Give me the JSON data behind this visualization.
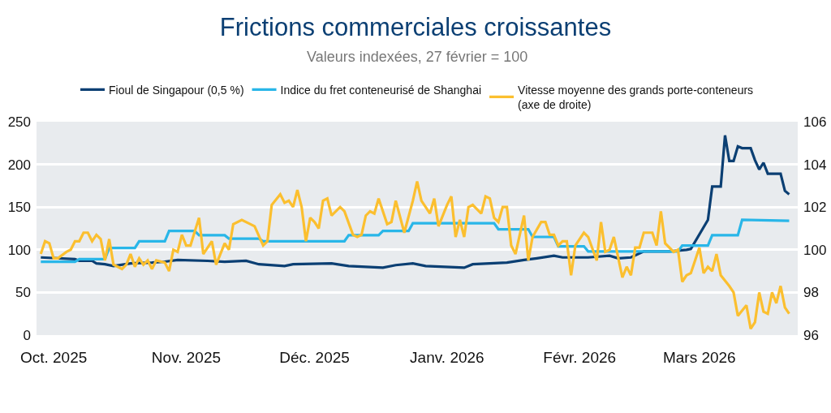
{
  "chart_data": {
    "type": "line",
    "title": "Frictions commerciales croissantes",
    "subtitle": "Valeurs indexées, 27 février = 100",
    "xlim": [
      "2025-09-27",
      "2026-03-24"
    ],
    "xticks": [
      {
        "value": "2025-10-01",
        "label": "Oct. 2025"
      },
      {
        "value": "2025-11-01",
        "label": "Nov. 2025"
      },
      {
        "value": "2025-12-01",
        "label": "Déc. 2025"
      },
      {
        "value": "2026-01-01",
        "label": "Janv. 2026"
      },
      {
        "value": "2026-02-01",
        "label": "Févr. 2026"
      },
      {
        "value": "2026-03-01",
        "label": "Mars 2026"
      }
    ],
    "ylim": [
      0,
      250
    ],
    "yticks": [
      0,
      50,
      100,
      150,
      200,
      250
    ],
    "y2lim": [
      96,
      106
    ],
    "y2ticks": [
      96,
      98,
      100,
      102,
      104,
      106
    ],
    "grid": "y",
    "legend": "top",
    "marker": "none",
    "line_style": "solid",
    "series": [
      {
        "name": "Fioul de Singapour (0,5 %)",
        "color": "#0b3f73",
        "x": [
          "2025-09-28",
          "2025-10-06",
          "2025-10-07",
          "2025-10-10",
          "2025-10-11",
          "2025-10-13",
          "2025-10-15",
          "2025-10-19",
          "2025-10-24",
          "2025-10-27",
          "2025-10-30",
          "2025-11-06",
          "2025-11-10",
          "2025-11-15",
          "2025-11-18",
          "2025-11-24",
          "2025-11-26",
          "2025-12-05",
          "2025-12-09",
          "2025-12-17",
          "2025-12-20",
          "2025-12-24",
          "2025-12-27",
          "2026-01-05",
          "2026-01-07",
          "2026-01-15",
          "2026-01-19",
          "2026-01-22",
          "2026-01-26",
          "2026-01-28",
          "2026-02-03",
          "2026-02-08",
          "2026-02-10",
          "2026-02-13",
          "2026-02-16",
          "2026-02-22",
          "2026-02-26",
          "2026-02-27",
          "2026-03-03",
          "2026-03-04",
          "2026-03-06",
          "2026-03-07",
          "2026-03-08",
          "2026-03-09",
          "2026-03-10",
          "2026-03-11",
          "2026-03-13",
          "2026-03-14",
          "2026-03-15",
          "2026-03-16",
          "2026-03-17",
          "2026-03-20",
          "2026-03-21",
          "2026-03-22"
        ],
        "values": [
          91,
          89,
          87,
          87,
          84,
          83,
          81,
          84,
          85,
          86,
          88,
          87,
          86,
          87,
          83,
          81,
          83,
          84,
          81,
          79,
          82,
          84,
          81,
          79,
          83,
          85,
          88,
          90,
          93,
          91,
          91,
          93,
          90,
          91,
          98,
          98,
          100,
          101,
          135,
          174,
          174,
          234,
          204,
          204,
          221,
          219,
          219,
          205,
          194,
          202,
          189,
          189,
          169,
          165
        ]
      },
      {
        "name": "Indice du fret conteneurisé de Shanghai",
        "color": "#29b6e8",
        "x": [
          "2025-09-28",
          "2025-10-06",
          "2025-10-07",
          "2025-10-13",
          "2025-10-14",
          "2025-10-20",
          "2025-10-21",
          "2025-10-27",
          "2025-10-28",
          "2025-11-03",
          "2025-11-04",
          "2025-11-10",
          "2025-11-11",
          "2025-11-18",
          "2025-11-19",
          "2025-12-08",
          "2025-12-09",
          "2025-12-16",
          "2025-12-17",
          "2025-12-23",
          "2025-12-24",
          "2026-01-12",
          "2026-01-13",
          "2026-01-20",
          "2026-01-21",
          "2026-01-26",
          "2026-01-27",
          "2026-02-02",
          "2026-02-03",
          "2026-02-24",
          "2026-02-25",
          "2026-03-03",
          "2026-03-04",
          "2026-03-10",
          "2026-03-11",
          "2026-03-22"
        ],
        "values": [
          86,
          86,
          89,
          89,
          102,
          102,
          110,
          110,
          122,
          122,
          117,
          117,
          113,
          113,
          110,
          110,
          117,
          117,
          122,
          122,
          131,
          131,
          124,
          124,
          115,
          115,
          104,
          104,
          98,
          98,
          105,
          105,
          117,
          117,
          135,
          134
        ]
      },
      {
        "name": "Vitesse moyenne des grands porte-conteneurs (axe de droite)",
        "color": "#fbbf2f",
        "axis": "y2",
        "x": [
          "2025-09-28",
          "2025-09-29",
          "2025-09-30",
          "2025-10-01",
          "2025-10-02",
          "2025-10-04",
          "2025-10-05",
          "2025-10-06",
          "2025-10-07",
          "2025-10-08",
          "2025-10-09",
          "2025-10-10",
          "2025-10-11",
          "2025-10-12",
          "2025-10-13",
          "2025-10-14",
          "2025-10-15",
          "2025-10-17",
          "2025-10-18",
          "2025-10-19",
          "2025-10-20",
          "2025-10-21",
          "2025-10-22",
          "2025-10-23",
          "2025-10-24",
          "2025-10-25",
          "2025-10-27",
          "2025-10-28",
          "2025-10-29",
          "2025-10-30",
          "2025-10-31",
          "2025-11-01",
          "2025-11-02",
          "2025-11-04",
          "2025-11-05",
          "2025-11-07",
          "2025-11-08",
          "2025-11-10",
          "2025-11-11",
          "2025-11-12",
          "2025-11-14",
          "2025-11-15",
          "2025-11-17",
          "2025-11-19",
          "2025-11-20",
          "2025-11-21",
          "2025-11-23",
          "2025-11-24",
          "2025-11-25",
          "2025-11-26",
          "2025-11-27",
          "2025-11-28",
          "2025-11-29",
          "2025-11-30",
          "2025-12-01",
          "2025-12-02",
          "2025-12-03",
          "2025-12-04",
          "2025-12-05",
          "2025-12-07",
          "2025-12-08",
          "2025-12-10",
          "2025-12-11",
          "2025-12-12",
          "2025-12-13",
          "2025-12-14",
          "2025-12-15",
          "2025-12-16",
          "2025-12-18",
          "2025-12-19",
          "2025-12-20",
          "2025-12-22",
          "2025-12-24",
          "2025-12-25",
          "2025-12-26",
          "2025-12-28",
          "2025-12-29",
          "2025-12-30",
          "2026-01-01",
          "2026-01-02",
          "2026-01-03",
          "2026-01-04",
          "2026-01-05",
          "2026-01-06",
          "2026-01-07",
          "2026-01-09",
          "2026-01-10",
          "2026-01-11",
          "2026-01-12",
          "2026-01-13",
          "2026-01-14",
          "2026-01-15",
          "2026-01-16",
          "2026-01-17",
          "2026-01-19",
          "2026-01-20",
          "2026-01-21",
          "2026-01-23",
          "2026-01-24",
          "2026-01-25",
          "2026-01-26",
          "2026-01-27",
          "2026-01-28",
          "2026-01-29",
          "2026-01-30",
          "2026-01-31",
          "2026-02-02",
          "2026-02-03",
          "2026-02-05",
          "2026-02-06",
          "2026-02-07",
          "2026-02-08",
          "2026-02-09",
          "2026-02-11",
          "2026-02-12",
          "2026-02-13",
          "2026-02-14",
          "2026-02-15",
          "2026-02-16",
          "2026-02-18",
          "2026-02-19",
          "2026-02-20",
          "2026-02-21",
          "2026-02-23",
          "2026-02-24",
          "2026-02-25",
          "2026-02-26",
          "2026-02-27",
          "2026-02-28",
          "2026-03-01",
          "2026-03-02",
          "2026-03-03",
          "2026-03-04",
          "2026-03-05",
          "2026-03-06",
          "2026-03-08",
          "2026-03-09",
          "2026-03-10",
          "2026-03-12",
          "2026-03-13",
          "2026-03-14",
          "2026-03-15",
          "2026-03-16",
          "2026-03-17",
          "2026-03-18",
          "2026-03-19",
          "2026-03-20",
          "2026-03-21",
          "2026-03-22"
        ],
        "values": [
          99.8,
          100.4,
          100.3,
          99.6,
          99.6,
          99.9,
          100.0,
          100.4,
          100.4,
          100.8,
          100.8,
          100.4,
          100.7,
          100.5,
          99.5,
          100.5,
          99.3,
          99.1,
          99.3,
          99.8,
          99.2,
          99.6,
          99.3,
          99.5,
          99.1,
          99.5,
          99.4,
          99.0,
          100.0,
          99.9,
          100.7,
          100.2,
          100.2,
          101.5,
          99.8,
          100.4,
          99.3,
          100.3,
          100.0,
          101.2,
          101.4,
          101.3,
          101.1,
          100.2,
          100.4,
          102.1,
          102.6,
          102.2,
          102.3,
          102.0,
          102.8,
          102.0,
          100.4,
          101.5,
          101.3,
          101.0,
          102.3,
          102.4,
          101.6,
          102.0,
          101.8,
          100.7,
          100.6,
          100.7,
          101.6,
          101.8,
          101.7,
          102.4,
          101.2,
          101.3,
          102.3,
          100.8,
          102.3,
          103.2,
          102.3,
          101.7,
          102.4,
          101.1,
          102.1,
          102.5,
          100.6,
          101.4,
          100.6,
          102.0,
          102.1,
          101.7,
          102.5,
          102.4,
          101.5,
          101.3,
          102.0,
          102.0,
          100.2,
          99.8,
          101.6,
          99.5,
          100.6,
          101.3,
          101.3,
          100.7,
          100.7,
          100.2,
          100.4,
          100.4,
          98.8,
          100.2,
          100.8,
          100.6,
          99.5,
          101.3,
          99.9,
          100.0,
          100.6,
          98.7,
          99.2,
          98.8,
          100.1,
          100.1,
          100.8,
          100.8,
          100.2,
          101.8,
          100.3,
          99.9,
          100.0,
          98.5,
          98.8,
          98.9,
          99.5,
          100.1,
          98.9,
          99.2,
          99.0,
          99.8,
          98.8,
          98.3,
          98.0,
          96.9,
          97.4,
          96.3,
          96.6,
          98.0,
          97.1,
          97.0,
          98.0,
          97.5,
          98.3,
          97.3,
          97.0
        ]
      }
    ]
  }
}
